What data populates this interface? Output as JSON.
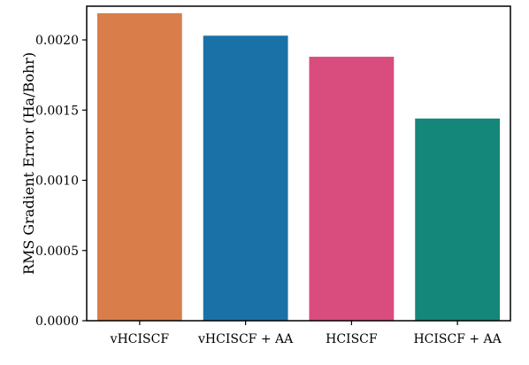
{
  "chart_data": {
    "type": "bar",
    "title": "",
    "xlabel": "",
    "ylabel": "RMS Gradient Error (Ha/Bohr)",
    "categories": [
      "vHCISCF",
      "vHCISCF + AA",
      "HCISCF",
      "HCISCF + AA"
    ],
    "values": [
      0.00219,
      0.00203,
      0.00188,
      0.00144
    ],
    "colors": [
      "#D97E4A",
      "#1A71A8",
      "#D94C7E",
      "#14877A"
    ],
    "ylim": [
      0,
      0.00224
    ],
    "yticks": [
      0,
      0.0005,
      0.001,
      0.0015,
      0.002
    ],
    "ytick_labels": [
      "0.0000",
      "0.0005",
      "0.0010",
      "0.0015",
      "0.0020"
    ],
    "grid": false,
    "legend": "none"
  }
}
